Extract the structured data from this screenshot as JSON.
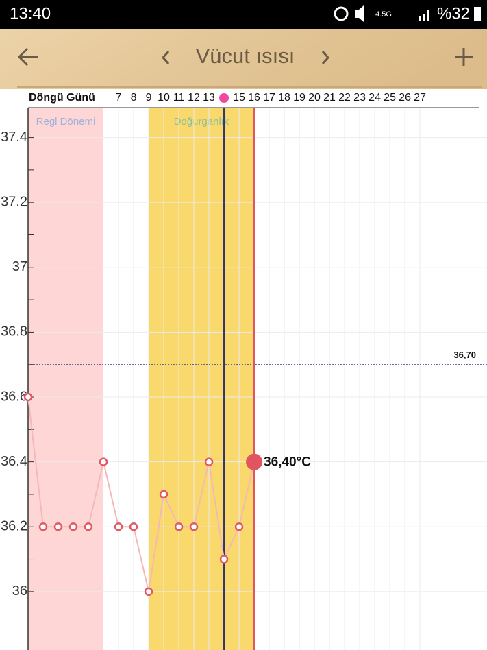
{
  "status_bar": {
    "time": "13:40",
    "network": "4.5G",
    "battery": "%32"
  },
  "header": {
    "title": "Vücut ısısı"
  },
  "chart_data": {
    "type": "line",
    "x_label": "Döngü Günü",
    "x": [
      1,
      2,
      3,
      4,
      5,
      6,
      7,
      8,
      9,
      10,
      11,
      12,
      13,
      14,
      15,
      16
    ],
    "values": [
      36.6,
      36.2,
      36.2,
      36.2,
      36.2,
      36.4,
      36.2,
      36.2,
      36.0,
      36.3,
      36.2,
      36.2,
      36.4,
      36.1,
      36.2,
      36.4
    ],
    "color": "#e05a64",
    "line_color": "#f4b8b8",
    "xlim": [
      1,
      31.45
    ],
    "xticks": [
      7,
      8,
      9,
      10,
      11,
      12,
      13,
      15,
      16,
      17,
      18,
      19,
      20,
      21,
      22,
      23,
      24,
      25,
      26,
      27
    ],
    "ylim": [
      35.82,
      37.49
    ],
    "yticks": [
      37.4,
      37.2,
      37,
      36.8,
      36.6,
      36.4,
      36.2,
      36
    ],
    "grid": true,
    "bands": [
      {
        "label": "Regl Dönemi",
        "start": 1,
        "end": 6,
        "color": "#ffd6d6",
        "label_color": "#9fb2dd"
      },
      {
        "label": "Doğurganlık",
        "start": 9,
        "end": 16,
        "color": "#f9d86c",
        "label_color": "#8dbf9c"
      }
    ],
    "reference_line": {
      "value": 36.7,
      "label": "36,70",
      "color": "#3a3a8a"
    },
    "today": 14,
    "today_color": "#33336e",
    "current": {
      "x": 16,
      "value": 36.4,
      "label": "36,40°C",
      "color": "#e05560"
    }
  }
}
